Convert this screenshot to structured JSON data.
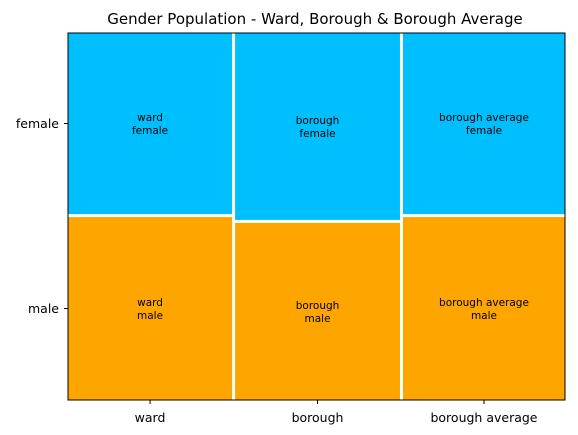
{
  "chart_data": {
    "type": "mosaic",
    "title": "Gender Population - Ward, Borough & Borough Average",
    "categories": [
      "ward",
      "borough",
      "borough average"
    ],
    "groups": [
      "female",
      "male"
    ],
    "column_shares": [
      0.3342,
      0.3358,
      0.33
    ],
    "female_fraction": [
      0.4975,
      0.5135,
      0.4975
    ],
    "tile_labels": [
      [
        "ward\nfemale",
        "ward\nmale"
      ],
      [
        "borough\nfemale",
        "borough\nmale"
      ],
      [
        "borough average\nfemale",
        "borough average\nmale"
      ]
    ],
    "colors": {
      "female": "#00BFFF",
      "male": "#FFA500",
      "gap": "#FFFFFF"
    }
  }
}
